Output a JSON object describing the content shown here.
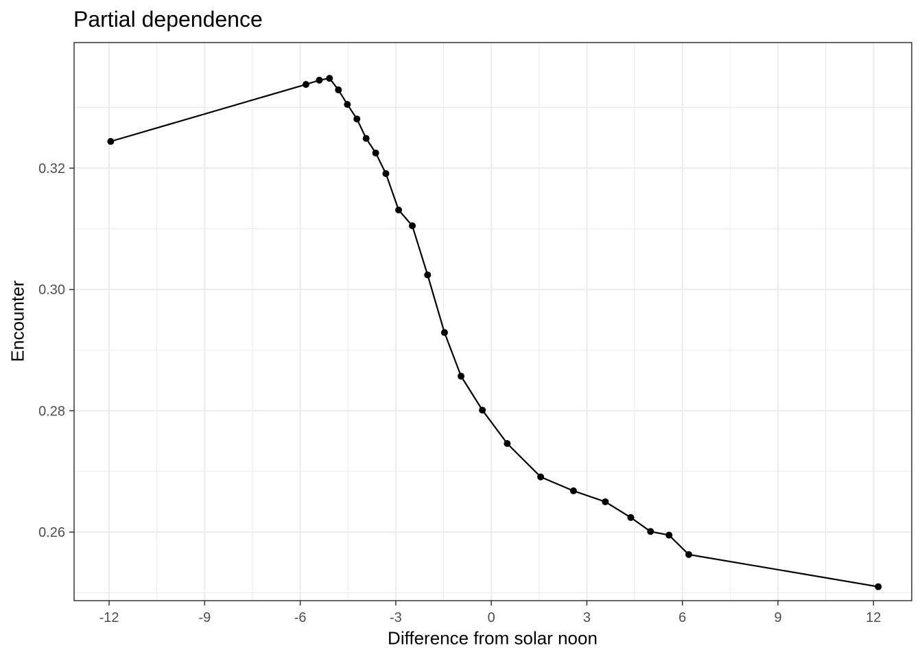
{
  "chart_data": {
    "type": "line",
    "title": "Partial dependence",
    "xlabel": "Difference from solar noon",
    "ylabel": "Encounter",
    "xlim": [
      -13.1,
      13.2
    ],
    "ylim": [
      0.2487,
      0.3407
    ],
    "x_ticks": [
      -12,
      -9,
      -6,
      -3,
      0,
      3,
      6,
      9,
      12
    ],
    "x_tick_labels": [
      "-12",
      "-9",
      "-6",
      "-3",
      "0",
      "3",
      "6",
      "9",
      "12"
    ],
    "y_ticks": [
      0.26,
      0.28,
      0.3,
      0.32
    ],
    "y_tick_labels": [
      "0.26",
      "0.28",
      "0.30",
      "0.32"
    ],
    "grid": true,
    "legend": "none",
    "line_color": "#000000",
    "point_color": "#000000",
    "series": [
      {
        "x": [
          -11.95,
          -5.82,
          -5.4,
          -5.08,
          -4.8,
          -4.52,
          -4.22,
          -3.93,
          -3.63,
          -3.31,
          -2.91,
          -2.48,
          -2.0,
          -1.47,
          -0.95,
          -0.28,
          0.5,
          1.55,
          2.58,
          3.58,
          4.38,
          5.0,
          5.58,
          6.2,
          12.15
        ],
        "y": [
          0.3244,
          0.3338,
          0.3345,
          0.3348,
          0.3329,
          0.3305,
          0.3281,
          0.3249,
          0.3225,
          0.3191,
          0.3131,
          0.3105,
          0.3024,
          0.2929,
          0.2857,
          0.2801,
          0.2746,
          0.2691,
          0.2668,
          0.265,
          0.2624,
          0.2601,
          0.2595,
          0.2563,
          0.251
        ]
      }
    ]
  }
}
